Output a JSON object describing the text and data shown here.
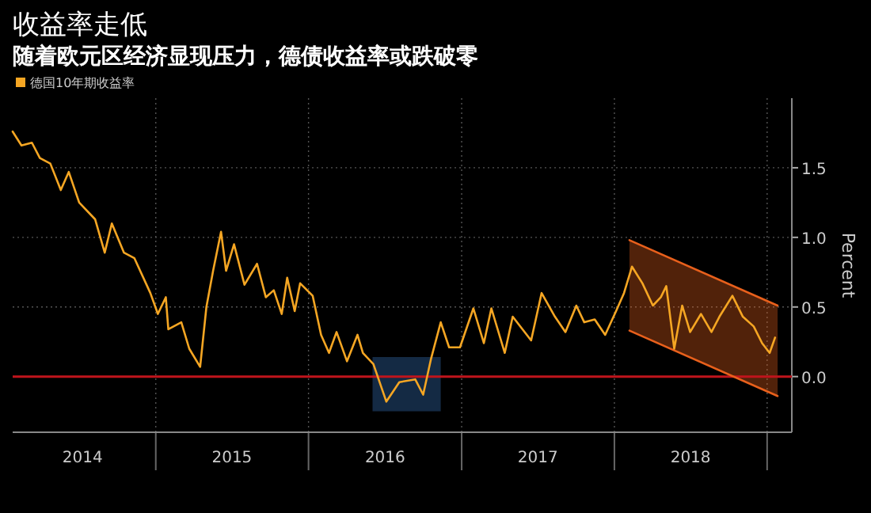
{
  "chart_data": {
    "type": "line",
    "title": "收益率走低",
    "subtitle": "随着欧元区经济显现压力，德债收益率或跌破零",
    "ylabel": "Percent",
    "xlim": [
      "2014-01-24",
      "2019-03-01"
    ],
    "xticks": [
      {
        "value": "2015-01-01",
        "label": null
      },
      {
        "value": "2016-01-01",
        "label": null
      },
      {
        "value": "2017-01-01",
        "label": null
      },
      {
        "value": "2018-01-01",
        "label": null
      },
      {
        "value": "2019-01-01",
        "label": null
      },
      {
        "value": "2014-07-10",
        "label": "2014"
      },
      {
        "value": "2015-07-02",
        "label": "2015"
      },
      {
        "value": "2016-07-02",
        "label": "2016"
      },
      {
        "value": "2017-07-02",
        "label": "2017"
      },
      {
        "value": "2018-07-02",
        "label": "2018"
      }
    ],
    "ylim": [
      -0.4,
      2.0
    ],
    "yticks": [
      {
        "value": 0,
        "label": "0.0"
      },
      {
        "value": 0.5,
        "label": "0.5"
      },
      {
        "value": 1,
        "label": "1.0"
      },
      {
        "value": 1.5,
        "label": "1.5"
      }
    ],
    "grid": true,
    "legend": "top left",
    "ref_lines": [
      {
        "axis": "y",
        "value": 0,
        "color": "#c0141c"
      }
    ],
    "series": [
      {
        "type": "line",
        "color": "#3a78c2",
        "x": [
          "2016-06-02",
          "2016-11-12"
        ],
        "values": [
          null,
          null
        ],
        "lower": [
          -0.25,
          -0.25
        ],
        "upper": [
          0.14,
          0.14
        ]
      },
      {
        "type": "line",
        "color": "#e8601c",
        "x": [
          "2018-02-06",
          "2019-01-26"
        ],
        "values": [
          null,
          null
        ],
        "lower": [
          0.33,
          -0.14
        ],
        "upper": [
          0.98,
          0.51
        ]
      },
      {
        "type": "line",
        "color": "#e8601c",
        "x": [
          "2018-02-06",
          "2019-01-26"
        ],
        "values": [
          0.98,
          0.51
        ]
      },
      {
        "type": "line",
        "color": "#e8601c",
        "x": [
          "2018-02-06",
          "2019-01-26"
        ],
        "values": [
          0.33,
          -0.14
        ]
      },
      {
        "name": "德国10年期收益率",
        "color": "#f5a623",
        "x": [
          "2014-01-24",
          "2014-02-14",
          "2014-03-11",
          "2014-03-30",
          "2014-04-24",
          "2014-05-19",
          "2014-06-07",
          "2014-07-02",
          "2014-08-09",
          "2014-09-01",
          "2014-09-18",
          "2014-10-17",
          "2014-11-11",
          "2014-12-19",
          "2015-01-06",
          "2015-01-25",
          "2015-01-31",
          "2015-03-03",
          "2015-03-22",
          "2015-04-17",
          "2015-05-02",
          "2015-05-18",
          "2015-06-06",
          "2015-06-18",
          "2015-07-07",
          "2015-08-01",
          "2015-08-31",
          "2015-09-21",
          "2015-10-10",
          "2015-10-29",
          "2015-11-11",
          "2015-11-29",
          "2015-12-12",
          "2016-01-11",
          "2016-01-31",
          "2016-02-19",
          "2016-03-08",
          "2016-04-02",
          "2016-04-27",
          "2016-05-10",
          "2016-06-04",
          "2016-07-05",
          "2016-08-05",
          "2016-09-12",
          "2016-10-01",
          "2016-10-20",
          "2016-11-12",
          "2016-12-02",
          "2016-12-28",
          "2017-01-29",
          "2017-02-23",
          "2017-03-13",
          "2017-04-14",
          "2017-05-03",
          "2017-06-16",
          "2017-07-11",
          "2017-08-12",
          "2017-09-06",
          "2017-10-02",
          "2017-10-21",
          "2017-11-15",
          "2017-12-10",
          "2018-01-05",
          "2018-01-24",
          "2018-02-12",
          "2018-03-09",
          "2018-04-03",
          "2018-04-22",
          "2018-05-05",
          "2018-05-24",
          "2018-06-12",
          "2018-07-01",
          "2018-07-27",
          "2018-08-21",
          "2018-09-09",
          "2018-10-10",
          "2018-11-04",
          "2018-11-30",
          "2018-12-20",
          "2019-01-07",
          "2019-01-20"
        ],
        "values": [
          1.76,
          1.66,
          1.68,
          1.57,
          1.53,
          1.34,
          1.47,
          1.25,
          1.13,
          0.89,
          1.1,
          0.89,
          0.85,
          0.6,
          0.45,
          0.57,
          0.34,
          0.39,
          0.2,
          0.07,
          0.5,
          0.76,
          1.04,
          0.76,
          0.95,
          0.66,
          0.81,
          0.57,
          0.62,
          0.45,
          0.71,
          0.47,
          0.67,
          0.58,
          0.3,
          0.17,
          0.32,
          0.11,
          0.3,
          0.17,
          0.09,
          -0.18,
          -0.04,
          -0.02,
          -0.13,
          0.13,
          0.39,
          0.21,
          0.21,
          0.49,
          0.24,
          0.49,
          0.17,
          0.43,
          0.26,
          0.6,
          0.43,
          0.32,
          0.51,
          0.39,
          0.41,
          0.3,
          0.47,
          0.6,
          0.79,
          0.67,
          0.51,
          0.57,
          0.65,
          0.2,
          0.51,
          0.32,
          0.45,
          0.32,
          0.43,
          0.58,
          0.43,
          0.36,
          0.24,
          0.17,
          0.28
        ]
      }
    ]
  }
}
